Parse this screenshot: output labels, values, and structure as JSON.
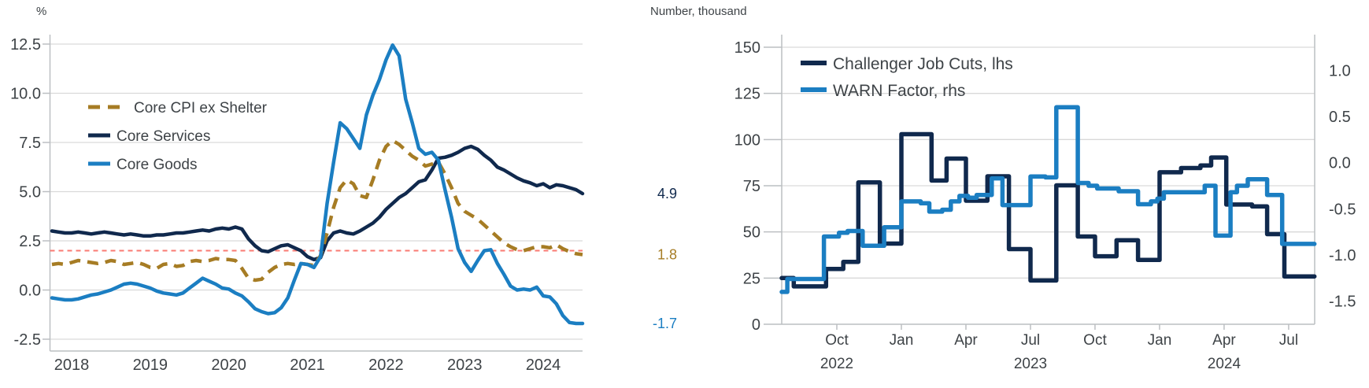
{
  "page": {
    "background": "#ffffff"
  },
  "colors": {
    "navy": "#10294d",
    "blue": "#1b7ec2",
    "gold": "#a67c24",
    "red_dashed": "#fa7a72",
    "text": "#3e4347",
    "grid": "#d9d9d9",
    "axis": "#bcbfc2"
  },
  "chart_data": [
    {
      "id": "core-inflation",
      "type": "line",
      "unit_label": "%",
      "x_start": "2017-10",
      "x_frequency": "monthly",
      "x_range_months": 81,
      "ylim": [
        -3.05,
        13.0
      ],
      "grid": true,
      "legend_position": "upper-left-inside",
      "yticks": [
        {
          "v": 12.5,
          "label": "12.5"
        },
        {
          "v": 10.0,
          "label": "10.0"
        },
        {
          "v": 7.5,
          "label": "7.5"
        },
        {
          "v": 5.0,
          "label": "5.0"
        },
        {
          "v": 2.5,
          "label": "2.5"
        },
        {
          "v": 0.0,
          "label": "0.0"
        },
        {
          "v": -2.5,
          "label": "-2.5"
        }
      ],
      "xticks": [
        {
          "t": 3,
          "label": "2018"
        },
        {
          "t": 15,
          "label": "2019"
        },
        {
          "t": 27,
          "label": "2020"
        },
        {
          "t": 39,
          "label": "2021"
        },
        {
          "t": 51,
          "label": "2022"
        },
        {
          "t": 63,
          "label": "2023"
        },
        {
          "t": 75,
          "label": "2024"
        }
      ],
      "ref_line": {
        "value": 2.0,
        "color": "#fa7a72"
      },
      "series": [
        {
          "name": "Core CPI ex Shelter",
          "slug": "core-cpi-ex-shelter",
          "color": "#a67c24",
          "dashed": true,
          "z": 1,
          "end_label": "1.8",
          "values": [
            1.3,
            1.35,
            1.3,
            1.4,
            1.5,
            1.45,
            1.4,
            1.35,
            1.4,
            1.5,
            1.45,
            1.3,
            1.35,
            1.4,
            1.3,
            1.15,
            1.1,
            1.3,
            1.35,
            1.2,
            1.25,
            1.45,
            1.5,
            1.45,
            1.5,
            1.6,
            1.55,
            1.55,
            1.5,
            1.1,
            0.6,
            0.5,
            0.55,
            0.9,
            1.15,
            1.3,
            1.35,
            1.3,
            1.35,
            1.3,
            1.25,
            1.75,
            2.9,
            4.2,
            5.2,
            5.6,
            5.4,
            4.8,
            4.7,
            5.6,
            6.6,
            7.3,
            7.6,
            7.4,
            7.1,
            6.8,
            6.6,
            6.3,
            6.4,
            6.5,
            5.9,
            5.2,
            4.4,
            4.0,
            3.8,
            3.6,
            3.3,
            3.0,
            2.7,
            2.4,
            2.2,
            2.05,
            2.0,
            2.1,
            2.2,
            2.2,
            2.15,
            2.3,
            2.1,
            1.95,
            1.85,
            1.8
          ]
        },
        {
          "name": "Core Services",
          "slug": "core-services",
          "color": "#10294d",
          "dashed": false,
          "z": 0,
          "end_label": "4.9",
          "values": [
            3.0,
            2.95,
            2.9,
            2.9,
            2.95,
            2.9,
            2.85,
            2.9,
            2.95,
            2.9,
            2.85,
            2.8,
            2.85,
            2.8,
            2.75,
            2.75,
            2.8,
            2.8,
            2.85,
            2.9,
            2.9,
            2.95,
            3.0,
            3.05,
            3.0,
            3.1,
            3.15,
            3.1,
            3.2,
            3.1,
            2.6,
            2.25,
            2.0,
            1.95,
            2.1,
            2.25,
            2.3,
            2.15,
            2.0,
            1.7,
            1.55,
            1.65,
            2.5,
            2.9,
            3.0,
            2.9,
            2.85,
            3.0,
            3.2,
            3.4,
            3.7,
            4.1,
            4.4,
            4.7,
            4.9,
            5.2,
            5.5,
            5.6,
            6.1,
            6.7,
            6.75,
            6.85,
            7.0,
            7.2,
            7.3,
            7.15,
            6.85,
            6.6,
            6.25,
            6.1,
            5.9,
            5.7,
            5.55,
            5.45,
            5.3,
            5.4,
            5.2,
            5.35,
            5.3,
            5.2,
            5.1,
            4.9
          ]
        },
        {
          "name": "Core Goods",
          "slug": "core-goods",
          "color": "#1b7ec2",
          "dashed": false,
          "z": 2,
          "end_label": "-1.7",
          "values": [
            -0.4,
            -0.45,
            -0.5,
            -0.5,
            -0.45,
            -0.35,
            -0.25,
            -0.2,
            -0.1,
            0.0,
            0.15,
            0.3,
            0.35,
            0.3,
            0.2,
            0.1,
            -0.05,
            -0.15,
            -0.2,
            -0.25,
            -0.15,
            0.1,
            0.35,
            0.6,
            0.45,
            0.3,
            0.1,
            0.05,
            -0.15,
            -0.3,
            -0.6,
            -0.95,
            -1.1,
            -1.2,
            -1.15,
            -0.9,
            -0.4,
            0.5,
            1.35,
            1.3,
            1.15,
            1.7,
            4.4,
            6.5,
            8.5,
            8.2,
            7.7,
            7.2,
            8.9,
            9.9,
            10.7,
            11.7,
            12.45,
            11.9,
            9.7,
            8.5,
            7.2,
            6.9,
            7.0,
            6.6,
            5.1,
            3.7,
            2.1,
            1.4,
            0.95,
            1.5,
            2.0,
            2.05,
            1.35,
            0.8,
            0.2,
            0.0,
            0.05,
            0.0,
            0.15,
            -0.3,
            -0.35,
            -0.7,
            -1.3,
            -1.65,
            -1.7,
            -1.7
          ]
        }
      ]
    },
    {
      "id": "job-cuts-warn",
      "type": "step",
      "unit_label": "Number, thousand",
      "x_start": "2022-07",
      "x_unit": "months since Jul 2022",
      "x_end_t": 25.2,
      "ylim_left": [
        0,
        150
      ],
      "ylim_right": [
        -1.75,
        1.25
      ],
      "grid": true,
      "legend_position": "upper-left-inside",
      "yticks_left": [
        {
          "v": 150,
          "label": "150"
        },
        {
          "v": 125,
          "label": "125"
        },
        {
          "v": 100,
          "label": "100"
        },
        {
          "v": 75,
          "label": "75"
        },
        {
          "v": 50,
          "label": "50"
        },
        {
          "v": 25,
          "label": "25"
        },
        {
          "v": 0,
          "label": "0"
        }
      ],
      "yticks_right": [
        {
          "v": 1.0,
          "label": "1.0"
        },
        {
          "v": 0.5,
          "label": "0.5"
        },
        {
          "v": 0.0,
          "label": "0.0"
        },
        {
          "v": -0.5,
          "label": "-0.5"
        },
        {
          "v": -1.0,
          "label": "-1.0"
        },
        {
          "v": -1.5,
          "label": "-1.5"
        }
      ],
      "rhs_to_lhs": {
        "offset": 87.5,
        "scale": 50
      },
      "xticks": [
        {
          "t": 3,
          "label": "Oct"
        },
        {
          "t": 6,
          "label": "Jan"
        },
        {
          "t": 9,
          "label": "Apr"
        },
        {
          "t": 12,
          "label": "Jul"
        },
        {
          "t": 15,
          "label": "Oct"
        },
        {
          "t": 18,
          "label": "Jan"
        },
        {
          "t": 21,
          "label": "Apr"
        },
        {
          "t": 24,
          "label": "Jul"
        }
      ],
      "year_labels": [
        {
          "t": 3,
          "label": "2022"
        },
        {
          "t": 12,
          "label": "2023"
        },
        {
          "t": 21,
          "label": "2024"
        }
      ],
      "series": [
        {
          "name": "Challenger Job Cuts, lhs",
          "slug": "challenger-job-cuts",
          "color": "#10294d",
          "axis": "lhs",
          "z": 0,
          "points": [
            [
              0.44,
              25.0
            ],
            [
              1.0,
              20.5
            ],
            [
              2.5,
              29.9
            ],
            [
              3.3,
              33.8
            ],
            [
              4.0,
              76.8
            ],
            [
              5.0,
              43.7
            ],
            [
              6.0,
              102.9
            ],
            [
              7.4,
              77.8
            ],
            [
              8.1,
              89.7
            ],
            [
              9.0,
              66.9
            ],
            [
              10.0,
              80.1
            ],
            [
              11.0,
              40.7
            ],
            [
              12.0,
              23.7
            ],
            [
              13.2,
              75.2
            ],
            [
              14.2,
              47.5
            ],
            [
              15.0,
              36.8
            ],
            [
              16.0,
              45.5
            ],
            [
              17.0,
              34.8
            ],
            [
              18.0,
              82.3
            ],
            [
              19.0,
              84.6
            ],
            [
              19.9,
              86.0
            ],
            [
              20.4,
              90.3
            ],
            [
              21.1,
              64.8
            ],
            [
              22.3,
              63.8
            ],
            [
              23.0,
              48.8
            ],
            [
              23.8,
              25.9
            ]
          ]
        },
        {
          "name": "WARN Factor, rhs",
          "slug": "warn-factor",
          "color": "#1b7ec2",
          "axis": "rhs",
          "z": 1,
          "points": [
            [
              0.44,
              -1.4
            ],
            [
              0.7,
              -1.26
            ],
            [
              2.4,
              -0.8
            ],
            [
              3.1,
              -0.76
            ],
            [
              3.5,
              -0.74
            ],
            [
              4.2,
              -0.9
            ],
            [
              5.2,
              -0.7
            ],
            [
              6.0,
              -0.42
            ],
            [
              6.9,
              -0.44
            ],
            [
              7.3,
              -0.53
            ],
            [
              7.9,
              -0.51
            ],
            [
              8.3,
              -0.42
            ],
            [
              8.7,
              -0.36
            ],
            [
              9.1,
              -0.38
            ],
            [
              9.5,
              -0.35
            ],
            [
              10.2,
              -0.17
            ],
            [
              10.7,
              -0.46
            ],
            [
              12.0,
              -0.15
            ],
            [
              12.7,
              -0.16
            ],
            [
              13.2,
              0.6
            ],
            [
              14.2,
              -0.22
            ],
            [
              14.7,
              -0.25
            ],
            [
              15.1,
              -0.28
            ],
            [
              16.1,
              -0.31
            ],
            [
              17.0,
              -0.45
            ],
            [
              17.6,
              -0.42
            ],
            [
              17.9,
              -0.39
            ],
            [
              18.2,
              -0.32
            ],
            [
              20.1,
              -0.25
            ],
            [
              20.6,
              -0.79
            ],
            [
              21.3,
              -0.32
            ],
            [
              21.6,
              -0.25
            ],
            [
              22.1,
              -0.18
            ],
            [
              23.0,
              -0.35
            ],
            [
              23.7,
              -0.88
            ]
          ]
        }
      ]
    }
  ]
}
